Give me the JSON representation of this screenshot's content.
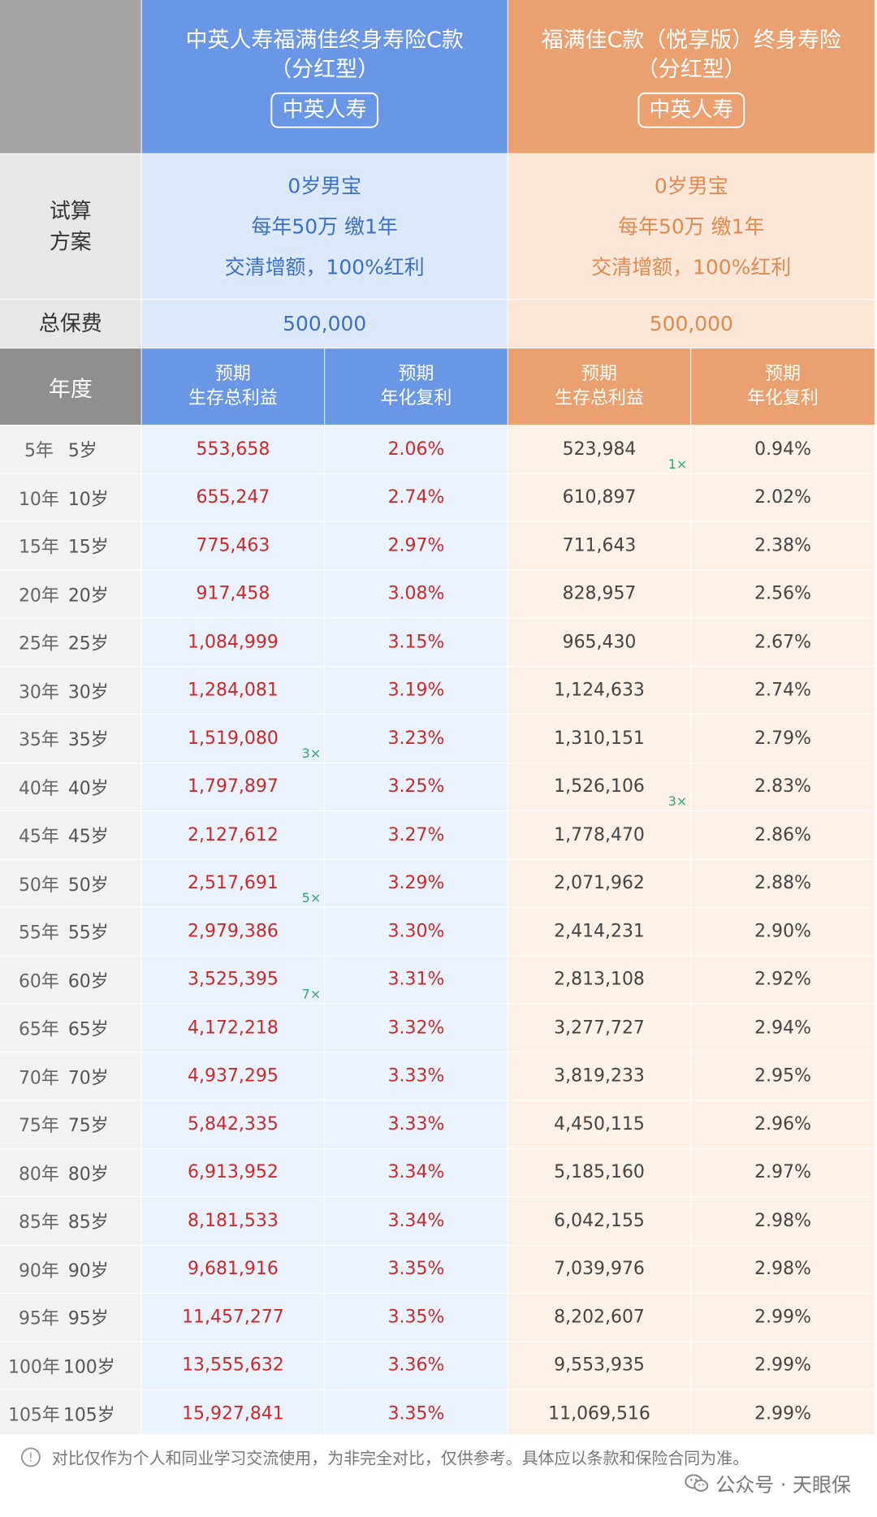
{
  "products": {
    "a": {
      "name_line1": "中英人寿福满佳终身寿险C款",
      "name_line2": "（分红型）",
      "company": "中英人寿"
    },
    "b": {
      "name_line1": "福满佳C款（悦享版）终身寿险",
      "name_line2": "（分红型）",
      "company": "中英人寿"
    }
  },
  "plan_label": {
    "line1": "试算",
    "line2": "方案"
  },
  "plan": {
    "a": {
      "line1": "0岁男宝",
      "line2": "每年50万 缴1年",
      "line3": "交清增额，100%红利"
    },
    "b": {
      "line1": "0岁男宝",
      "line2": "每年50万 缴1年",
      "line3": "交清增额，100%红利"
    }
  },
  "premium_label": "总保费",
  "premium": {
    "a": "500,000",
    "b": "500,000"
  },
  "year_header": "年度",
  "col_headers": {
    "a_total": {
      "line1": "预期",
      "line2": "生存总利益"
    },
    "a_rate": {
      "line1": "预期",
      "line2": "年化复利"
    },
    "b_total": {
      "line1": "预期",
      "line2": "生存总利益"
    },
    "b_rate": {
      "line1": "预期",
      "line2": "年化复利"
    }
  },
  "rows": [
    {
      "year": "5年",
      "age": "5岁",
      "a_total": "553,658",
      "a_rate": "2.06%",
      "b_total": "523,984",
      "b_rate": "0.94%",
      "b_mult": "1×"
    },
    {
      "year": "10年",
      "age": "10岁",
      "a_total": "655,247",
      "a_rate": "2.74%",
      "b_total": "610,897",
      "b_rate": "2.02%"
    },
    {
      "year": "15年",
      "age": "15岁",
      "a_total": "775,463",
      "a_rate": "2.97%",
      "b_total": "711,643",
      "b_rate": "2.38%"
    },
    {
      "year": "20年",
      "age": "20岁",
      "a_total": "917,458",
      "a_rate": "3.08%",
      "b_total": "828,957",
      "b_rate": "2.56%"
    },
    {
      "year": "25年",
      "age": "25岁",
      "a_total": "1,084,999",
      "a_rate": "3.15%",
      "b_total": "965,430",
      "b_rate": "2.67%"
    },
    {
      "year": "30年",
      "age": "30岁",
      "a_total": "1,284,081",
      "a_rate": "3.19%",
      "b_total": "1,124,633",
      "b_rate": "2.74%"
    },
    {
      "year": "35年",
      "age": "35岁",
      "a_total": "1,519,080",
      "a_rate": "3.23%",
      "b_total": "1,310,151",
      "b_rate": "2.79%",
      "a_mult": "3×"
    },
    {
      "year": "40年",
      "age": "40岁",
      "a_total": "1,797,897",
      "a_rate": "3.25%",
      "b_total": "1,526,106",
      "b_rate": "2.83%",
      "b_mult": "3×"
    },
    {
      "year": "45年",
      "age": "45岁",
      "a_total": "2,127,612",
      "a_rate": "3.27%",
      "b_total": "1,778,470",
      "b_rate": "2.86%"
    },
    {
      "year": "50年",
      "age": "50岁",
      "a_total": "2,517,691",
      "a_rate": "3.29%",
      "b_total": "2,071,962",
      "b_rate": "2.88%",
      "a_mult": "5×"
    },
    {
      "year": "55年",
      "age": "55岁",
      "a_total": "2,979,386",
      "a_rate": "3.30%",
      "b_total": "2,414,231",
      "b_rate": "2.90%"
    },
    {
      "year": "60年",
      "age": "60岁",
      "a_total": "3,525,395",
      "a_rate": "3.31%",
      "b_total": "2,813,108",
      "b_rate": "2.92%",
      "a_mult": "7×"
    },
    {
      "year": "65年",
      "age": "65岁",
      "a_total": "4,172,218",
      "a_rate": "3.32%",
      "b_total": "3,277,727",
      "b_rate": "2.94%"
    },
    {
      "year": "70年",
      "age": "70岁",
      "a_total": "4,937,295",
      "a_rate": "3.33%",
      "b_total": "3,819,233",
      "b_rate": "2.95%"
    },
    {
      "year": "75年",
      "age": "75岁",
      "a_total": "5,842,335",
      "a_rate": "3.33%",
      "b_total": "4,450,115",
      "b_rate": "2.96%"
    },
    {
      "year": "80年",
      "age": "80岁",
      "a_total": "6,913,952",
      "a_rate": "3.34%",
      "b_total": "5,185,160",
      "b_rate": "2.97%"
    },
    {
      "year": "85年",
      "age": "85岁",
      "a_total": "8,181,533",
      "a_rate": "3.34%",
      "b_total": "6,042,155",
      "b_rate": "2.98%"
    },
    {
      "year": "90年",
      "age": "90岁",
      "a_total": "9,681,916",
      "a_rate": "3.35%",
      "b_total": "7,039,976",
      "b_rate": "2.98%"
    },
    {
      "year": "95年",
      "age": "95岁",
      "a_total": "11,457,277",
      "a_rate": "3.35%",
      "b_total": "8,202,607",
      "b_rate": "2.99%"
    },
    {
      "year": "100年",
      "age": "100岁",
      "a_total": "13,555,632",
      "a_rate": "3.36%",
      "b_total": "9,553,935",
      "b_rate": "2.99%"
    },
    {
      "year": "105年",
      "age": "105岁",
      "a_total": "15,927,841",
      "a_rate": "3.35%",
      "b_total": "11,069,516",
      "b_rate": "2.99%"
    }
  ],
  "footer": {
    "icon": "info-icon",
    "note": "对比仅作为个人和同业学习交流使用，为非完全对比，仅供参考。具体应以条款和保险合同为准。",
    "watermark": "公众号 · 天眼保"
  },
  "colors": {
    "product_a": "#6a96e6",
    "product_b": "#eba070",
    "a_value_text": "#cc2a2a",
    "multiplier": "#2fa872"
  }
}
